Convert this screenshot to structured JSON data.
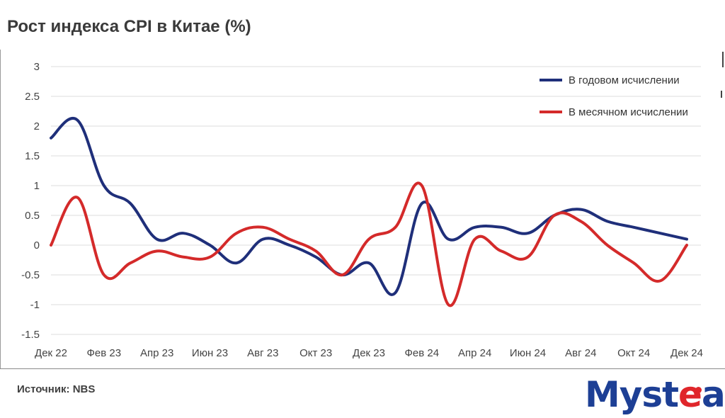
{
  "title": "Рост индекса CPI в Китае (%)",
  "source": "Источник: NBS",
  "logo": {
    "text_before": "Myst",
    "text_accent": "e",
    "text_after": "al"
  },
  "chart_data": {
    "type": "line",
    "title": "Рост индекса CPI в Китае (%)",
    "xlabel": "",
    "ylabel": "",
    "ylim": [
      -1.5,
      3
    ],
    "yticks": [
      3,
      2.5,
      2,
      1.5,
      1,
      0.5,
      0,
      -0.5,
      -1,
      -1.5
    ],
    "ytick_labels": [
      "3",
      "2.5",
      "2",
      "1.5",
      "1",
      "0.5",
      "0",
      "-0.5",
      "-1",
      "-1.5"
    ],
    "grid": true,
    "legend_position": "top-right",
    "x_tick_labels": [
      "Дек 22",
      "Фев 23",
      "Апр 23",
      "Июн 23",
      "Авг 23",
      "Окт 23",
      "Дек 23",
      "Фев 24",
      "Апр 24",
      "Июн 24",
      "Авг 24",
      "Окт 24",
      "Дек 24"
    ],
    "x_tick_months": [
      0,
      2,
      4,
      6,
      8,
      10,
      12,
      14,
      16,
      18,
      20,
      22,
      24
    ],
    "x_months": [
      0,
      1,
      2,
      3,
      4,
      5,
      6,
      7,
      8,
      9,
      10,
      11,
      12,
      13,
      14,
      15,
      16,
      17,
      18,
      19,
      20,
      21,
      22,
      23,
      24
    ],
    "series": [
      {
        "name": "В годовом исчислении",
        "color": "#1f2f7a",
        "values": [
          1.8,
          2.1,
          1.0,
          0.7,
          0.1,
          0.2,
          0.0,
          -0.3,
          0.1,
          0.0,
          -0.2,
          -0.5,
          -0.3,
          -0.8,
          0.7,
          0.1,
          0.3,
          0.3,
          0.2,
          0.5,
          0.6,
          0.4,
          0.3,
          0.2,
          0.1
        ]
      },
      {
        "name": "В месячном исчислении",
        "color": "#d42a2a",
        "values": [
          0.0,
          0.8,
          -0.5,
          -0.3,
          -0.1,
          -0.2,
          -0.2,
          0.2,
          0.3,
          0.1,
          -0.1,
          -0.5,
          0.1,
          0.3,
          1.0,
          -1.0,
          0.1,
          -0.1,
          -0.2,
          0.5,
          0.4,
          0.0,
          -0.3,
          -0.6,
          0.0
        ]
      }
    ]
  }
}
